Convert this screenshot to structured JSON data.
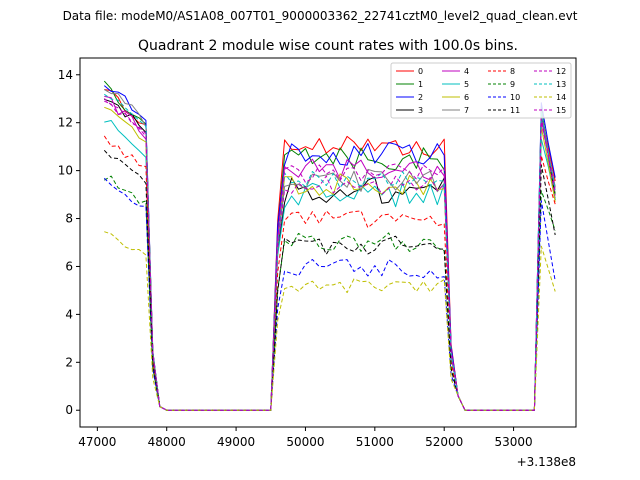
{
  "figure": {
    "suptitle": "Data file: modeM0/AS1A08_007T01_9000003362_22741cztM0_level2_quad_clean.evt",
    "offset_label": "+3.138e8"
  },
  "chart_data": {
    "type": "line",
    "title": "Quadrant 2 module wise count rates with 100.0s bins.",
    "xlabel": "",
    "ylabel": "",
    "x_offset": 313800000,
    "xlim": [
      46750,
      53900
    ],
    "ylim": [
      -0.7,
      14.7
    ],
    "x_ticks": [
      47000,
      48000,
      49000,
      50000,
      51000,
      52000,
      53000
    ],
    "y_ticks": [
      0,
      2,
      4,
      6,
      8,
      10,
      12,
      14
    ],
    "grid": false,
    "legend_position": "top-right",
    "segments": [
      {
        "x_start": 47100,
        "x_end": 47900
      },
      {
        "x_start": 48000,
        "x_end": 49500
      },
      {
        "x_start": 49600,
        "x_end": 52200
      },
      {
        "x_start": 52300,
        "x_end": 53300
      },
      {
        "x_start": 53400,
        "x_end": 53600
      }
    ],
    "series": [
      {
        "name": "0",
        "color": "#ff0000",
        "dash": "solid",
        "level": 11.0,
        "start": 13.4,
        "end": 9.6,
        "noise": 0.3
      },
      {
        "name": "1",
        "color": "#008000",
        "dash": "solid",
        "level": 10.5,
        "start": 13.5,
        "end": 9.0,
        "noise": 0.3
      },
      {
        "name": "2",
        "color": "#0000ff",
        "dash": "solid",
        "level": 10.7,
        "start": 13.7,
        "end": 9.7,
        "noise": 0.3
      },
      {
        "name": "3",
        "color": "#000000",
        "dash": "solid",
        "level": 9.2,
        "start": 13.2,
        "end": 8.9,
        "noise": 0.35
      },
      {
        "name": "4",
        "color": "#bf00bf",
        "dash": "solid",
        "level": 10.0,
        "start": 13.1,
        "end": 9.4,
        "noise": 0.3
      },
      {
        "name": "5",
        "color": "#00bfbf",
        "dash": "solid",
        "level": 9.0,
        "start": 12.1,
        "end": 8.9,
        "noise": 0.35
      },
      {
        "name": "6",
        "color": "#bfbf00",
        "dash": "solid",
        "level": 9.4,
        "start": 12.6,
        "end": 8.7,
        "noise": 0.3
      },
      {
        "name": "7",
        "color": "#808080",
        "dash": "solid",
        "level": 9.5,
        "start": 13.6,
        "end": 9.2,
        "noise": 0.35
      },
      {
        "name": "8",
        "color": "#ff0000",
        "dash": "dashed",
        "level": 8.0,
        "start": 11.4,
        "end": 8.5,
        "noise": 0.25
      },
      {
        "name": "9",
        "color": "#008000",
        "dash": "dashed",
        "level": 7.0,
        "start": 9.8,
        "end": 7.4,
        "noise": 0.25
      },
      {
        "name": "10",
        "color": "#0000ff",
        "dash": "dashed",
        "level": 5.9,
        "start": 9.5,
        "end": 5.5,
        "noise": 0.25
      },
      {
        "name": "11",
        "color": "#000000",
        "dash": "dashed",
        "level": 6.9,
        "start": 10.9,
        "end": 7.3,
        "noise": 0.25
      },
      {
        "name": "12",
        "color": "#bf00bf",
        "dash": "dashed",
        "level": 9.4,
        "start": 13.0,
        "end": 9.1,
        "noise": 0.25
      },
      {
        "name": "13",
        "color": "#00bfbf",
        "dash": "dashed",
        "level": 9.6,
        "start": 13.3,
        "end": 9.3,
        "noise": 0.25
      },
      {
        "name": "14",
        "color": "#bfbf00",
        "dash": "dashed",
        "level": 5.2,
        "start": 7.4,
        "end": 5.0,
        "noise": 0.2
      },
      {
        "name": "15",
        "color": "#bf00bf",
        "dash": "dashed",
        "level": 9.9,
        "start": 13.2,
        "end": 9.0,
        "noise": 0.25
      }
    ]
  }
}
